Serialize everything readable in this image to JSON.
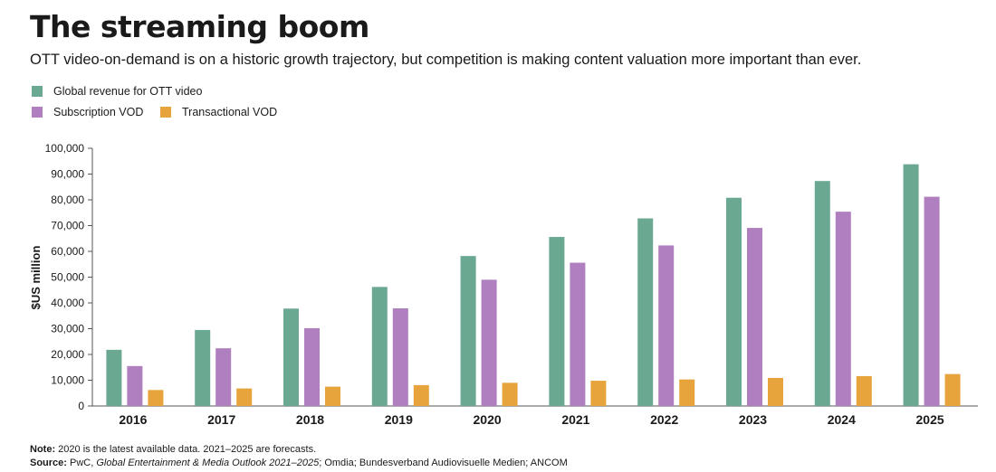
{
  "title": "The streaming boom",
  "subtitle": "OTT video-on-demand is on a historic growth trajectory, but competition is making content valuation more important than ever.",
  "colors": {
    "revenue": "#6aa892",
    "svod": "#af7fbf",
    "tvod": "#e8a43c",
    "axis": "#555555"
  },
  "chart_data": {
    "type": "bar",
    "title": "The streaming boom",
    "xlabel": "",
    "ylabel": "$US million",
    "ylim": [
      0,
      100000
    ],
    "yticks": [
      0,
      10000,
      20000,
      30000,
      40000,
      50000,
      60000,
      70000,
      80000,
      90000,
      100000
    ],
    "ytick_labels": [
      "0",
      "10,000",
      "20,000",
      "30,000",
      "40,000",
      "50,000",
      "60,000",
      "70,000",
      "80,000",
      "90,000",
      "100,000"
    ],
    "grid": false,
    "legend_position": "top-left",
    "categories": [
      "2016",
      "2017",
      "2018",
      "2019",
      "2020",
      "2021",
      "2022",
      "2023",
      "2024",
      "2025"
    ],
    "series": [
      {
        "name": "Global revenue for OTT video",
        "key": "revenue",
        "values": [
          21800,
          29500,
          37800,
          46200,
          58200,
          65600,
          72800,
          80800,
          87300,
          93800
        ]
      },
      {
        "name": "Subscription VOD",
        "key": "svod",
        "values": [
          15500,
          22400,
          30200,
          37900,
          49000,
          55600,
          62300,
          69100,
          75400,
          81200
        ]
      },
      {
        "name": "Transactional VOD",
        "key": "tvod",
        "values": [
          6200,
          6800,
          7500,
          8100,
          9000,
          9800,
          10300,
          10900,
          11600,
          12400
        ]
      }
    ]
  },
  "footer": {
    "note_label": "Note:",
    "note_text": " 2020 is the latest available data. 2021–2025 are forecasts.",
    "source_label": "Source:",
    "source_pre": " PwC, ",
    "source_italic": "Global Entertainment & Media Outlook 2021–2025",
    "source_post": "; Omdia; Bundesverband Audiovisuelle Medien; ANCOM"
  }
}
